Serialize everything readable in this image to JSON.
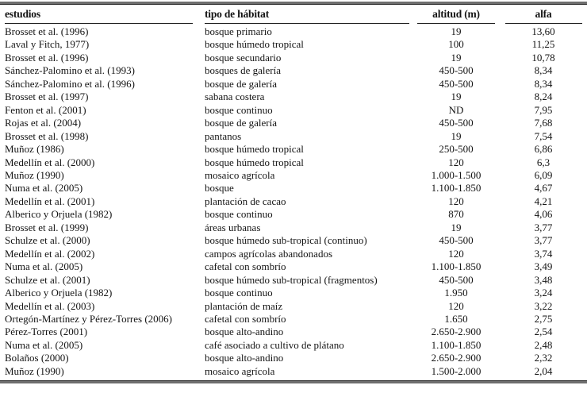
{
  "table": {
    "columns": [
      "estudios",
      "tipo de hábitat",
      "altitud (m)",
      "alfa"
    ],
    "rows": [
      [
        "Brosset et al. (1996)",
        "bosque primario",
        "19",
        "13,60"
      ],
      [
        "Laval y Fitch, 1977)",
        "bosque húmedo tropical",
        "100",
        "11,25"
      ],
      [
        "Brosset et al. (1996)",
        "bosque secundario",
        "19",
        "10,78"
      ],
      [
        "Sánchez-Palomino et al. (1993)",
        "bosques de galería",
        "450-500",
        "8,34"
      ],
      [
        "Sánchez-Palomino et al. (1996)",
        "bosque de galería",
        "450-500",
        "8,34"
      ],
      [
        "Brosset et al. (1997)",
        "sabana costera",
        "19",
        "8,24"
      ],
      [
        "Fenton et al. (2001)",
        "bosque continuo",
        "ND",
        "7,95"
      ],
      [
        "Rojas et al. (2004)",
        "bosque de galería",
        "450-500",
        "7,68"
      ],
      [
        "Brosset et al. (1998)",
        "pantanos",
        "19",
        "7,54"
      ],
      [
        "Muñoz (1986)",
        "bosque húmedo tropical",
        "250-500",
        "6,86"
      ],
      [
        "Medellín et al. (2000)",
        "bosque húmedo tropical",
        "120",
        "6,3"
      ],
      [
        "Muñoz (1990)",
        "mosaico agrícola",
        "1.000-1.500",
        "6,09"
      ],
      [
        "Numa et al. (2005)",
        "bosque",
        "1.100-1.850",
        "4,67"
      ],
      [
        "Medellín et al. (2001)",
        "plantación de cacao",
        "120",
        "4,21"
      ],
      [
        "Alberico y Orjuela (1982)",
        "bosque continuo",
        "870",
        "4,06"
      ],
      [
        "Brosset et al. (1999)",
        "áreas urbanas",
        "19",
        "3,77"
      ],
      [
        "Schulze et al. (2000)",
        "bosque húmedo sub-tropical (continuo)",
        "450-500",
        "3,77"
      ],
      [
        "Medellín et al. (2002)",
        "campos agrícolas abandonados",
        "120",
        "3,74"
      ],
      [
        "Numa et al. (2005)",
        "cafetal con sombrío",
        "1.100-1.850",
        "3,49"
      ],
      [
        "Schulze et al. (2001)",
        "bosque húmedo sub-tropical (fragmentos)",
        "450-500",
        "3,48"
      ],
      [
        "Alberico y Orjuela (1982)",
        "bosque continuo",
        "1.950",
        "3,24"
      ],
      [
        "Medellín et al. (2003)",
        "plantación de maíz",
        "120",
        "3,22"
      ],
      [
        "Ortegón-Martínez y Pérez-Torres (2006)",
        "cafetal con sombrío",
        "1.650",
        "2,75"
      ],
      [
        "Pérez-Torres (2001)",
        "bosque alto-andino",
        "2.650-2.900",
        "2,54"
      ],
      [
        "Numa et al. (2005)",
        "café asociado a cultivo de plátano",
        "1.100-1.850",
        "2,48"
      ],
      [
        "Bolaños (2000)",
        "bosque alto-andino",
        "2.650-2.900",
        "2,32"
      ],
      [
        "Muñoz (1990)",
        "mosaico agrícola",
        "1.500-2.000",
        "2,04"
      ]
    ]
  }
}
